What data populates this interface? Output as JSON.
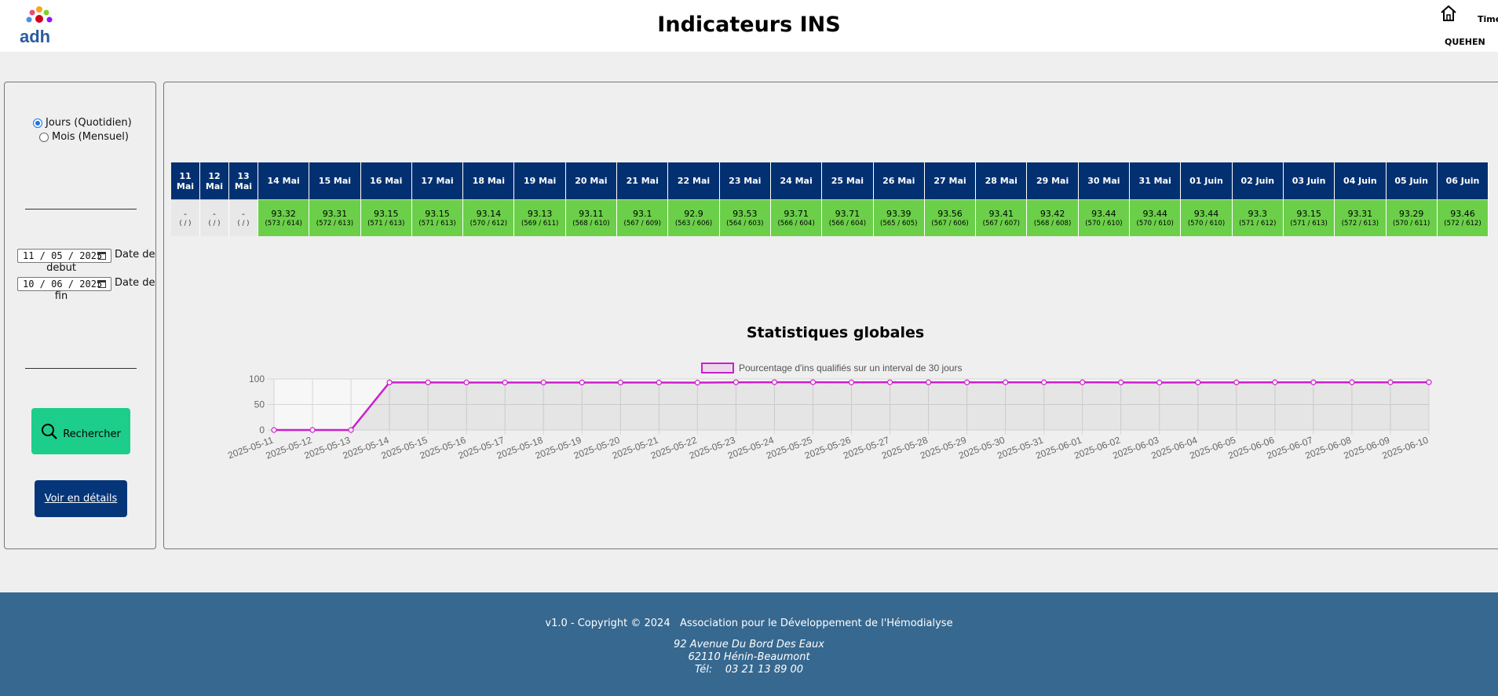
{
  "header": {
    "logo_text": "adh",
    "title": "Indicateurs INS",
    "user": "QUEHEN",
    "cut_label": "Timé"
  },
  "sidebar": {
    "period_options": [
      {
        "label": "Jours (Quotidien)",
        "selected": true
      },
      {
        "label": "Mois (Mensuel)",
        "selected": false
      }
    ],
    "start_date_value": "11 / 05 / 2025",
    "start_date_label_1": "Date de",
    "start_date_label_2": "debut",
    "end_date_value": "10 / 06 / 2025",
    "end_date_label_1": "Date de",
    "end_date_label_2": "fin",
    "search_button": "Rechercher",
    "details_button": "Voir en détails"
  },
  "table": {
    "columns": [
      {
        "day": "11",
        "month": "Mai",
        "value": "-",
        "ratio": "( / )",
        "empty": true,
        "width": 37
      },
      {
        "day": "12",
        "month": "Mai",
        "value": "-",
        "ratio": "( / )",
        "empty": true,
        "width": 37
      },
      {
        "day": "13",
        "month": "Mai",
        "value": "-",
        "ratio": "( / )",
        "empty": true,
        "width": 37
      },
      {
        "day": "14",
        "month": "Mai",
        "value": "93.32",
        "ratio": "(573 / 614)"
      },
      {
        "day": "15",
        "month": "Mai",
        "value": "93.31",
        "ratio": "(572 / 613)"
      },
      {
        "day": "16",
        "month": "Mai",
        "value": "93.15",
        "ratio": "(571 / 613)"
      },
      {
        "day": "17",
        "month": "Mai",
        "value": "93.15",
        "ratio": "(571 / 613)"
      },
      {
        "day": "18",
        "month": "Mai",
        "value": "93.14",
        "ratio": "(570 / 612)"
      },
      {
        "day": "19",
        "month": "Mai",
        "value": "93.13",
        "ratio": "(569 / 611)"
      },
      {
        "day": "20",
        "month": "Mai",
        "value": "93.11",
        "ratio": "(568 / 610)"
      },
      {
        "day": "21",
        "month": "Mai",
        "value": "93.1",
        "ratio": "(567 / 609)"
      },
      {
        "day": "22",
        "month": "Mai",
        "value": "92.9",
        "ratio": "(563 / 606)"
      },
      {
        "day": "23",
        "month": "Mai",
        "value": "93.53",
        "ratio": "(564 / 603)"
      },
      {
        "day": "24",
        "month": "Mai",
        "value": "93.71",
        "ratio": "(566 / 604)"
      },
      {
        "day": "25",
        "month": "Mai",
        "value": "93.71",
        "ratio": "(566 / 604)"
      },
      {
        "day": "26",
        "month": "Mai",
        "value": "93.39",
        "ratio": "(565 / 605)"
      },
      {
        "day": "27",
        "month": "Mai",
        "value": "93.56",
        "ratio": "(567 / 606)"
      },
      {
        "day": "28",
        "month": "Mai",
        "value": "93.41",
        "ratio": "(567 / 607)"
      },
      {
        "day": "29",
        "month": "Mai",
        "value": "93.42",
        "ratio": "(568 / 608)"
      },
      {
        "day": "30",
        "month": "Mai",
        "value": "93.44",
        "ratio": "(570 / 610)"
      },
      {
        "day": "31",
        "month": "Mai",
        "value": "93.44",
        "ratio": "(570 / 610)"
      },
      {
        "day": "01",
        "month": "Juin",
        "value": "93.44",
        "ratio": "(570 / 610)"
      },
      {
        "day": "02",
        "month": "Juin",
        "value": "93.3",
        "ratio": "(571 / 612)"
      },
      {
        "day": "03",
        "month": "Juin",
        "value": "93.15",
        "ratio": "(571 / 613)"
      },
      {
        "day": "04",
        "month": "Juin",
        "value": "93.31",
        "ratio": "(572 / 613)"
      },
      {
        "day": "05",
        "month": "Juin",
        "value": "93.29",
        "ratio": "(570 / 611)"
      },
      {
        "day": "06",
        "month": "Juin",
        "value": "93.46",
        "ratio": "(572 / 612)"
      }
    ]
  },
  "chart": {
    "title": "Statistiques globales",
    "legend": "Pourcentage d'ins qualifiés sur un interval de 30 jours"
  },
  "chart_data": {
    "type": "line",
    "title": "Statistiques globales",
    "x": [
      "2025-05-11",
      "2025-05-12",
      "2025-05-13",
      "2025-05-14",
      "2025-05-15",
      "2025-05-16",
      "2025-05-17",
      "2025-05-18",
      "2025-05-19",
      "2025-05-20",
      "2025-05-21",
      "2025-05-22",
      "2025-05-23",
      "2025-05-24",
      "2025-05-25",
      "2025-05-26",
      "2025-05-27",
      "2025-05-28",
      "2025-05-29",
      "2025-05-30",
      "2025-05-31",
      "2025-06-01",
      "2025-06-02",
      "2025-06-03",
      "2025-06-04",
      "2025-06-05",
      "2025-06-06",
      "2025-06-07",
      "2025-06-08",
      "2025-06-09",
      "2025-06-10"
    ],
    "series": [
      {
        "name": "Pourcentage d'ins qualifiés sur un interval de 30 jours",
        "values": [
          0,
          0,
          0,
          93.32,
          93.31,
          93.15,
          93.15,
          93.14,
          93.13,
          93.11,
          93.1,
          92.9,
          93.53,
          93.71,
          93.71,
          93.39,
          93.56,
          93.41,
          93.42,
          93.44,
          93.44,
          93.44,
          93.3,
          93.15,
          93.31,
          93.29,
          93.46,
          93.5,
          93.5,
          93.5,
          93.6
        ]
      }
    ],
    "yticks": [
      "100",
      "50",
      "0"
    ],
    "ylim": [
      0,
      100
    ],
    "color": "#cc1fcc"
  },
  "footer": {
    "copyright": "v1.0 - Copyright © 2024   Association pour le Développement de l'Hémodialyse",
    "address_1": "92 Avenue Du Bord Des Eaux",
    "address_2": "62110 Hénin-Beaumont",
    "phone": "Tél:    03 21 13 89 00"
  }
}
